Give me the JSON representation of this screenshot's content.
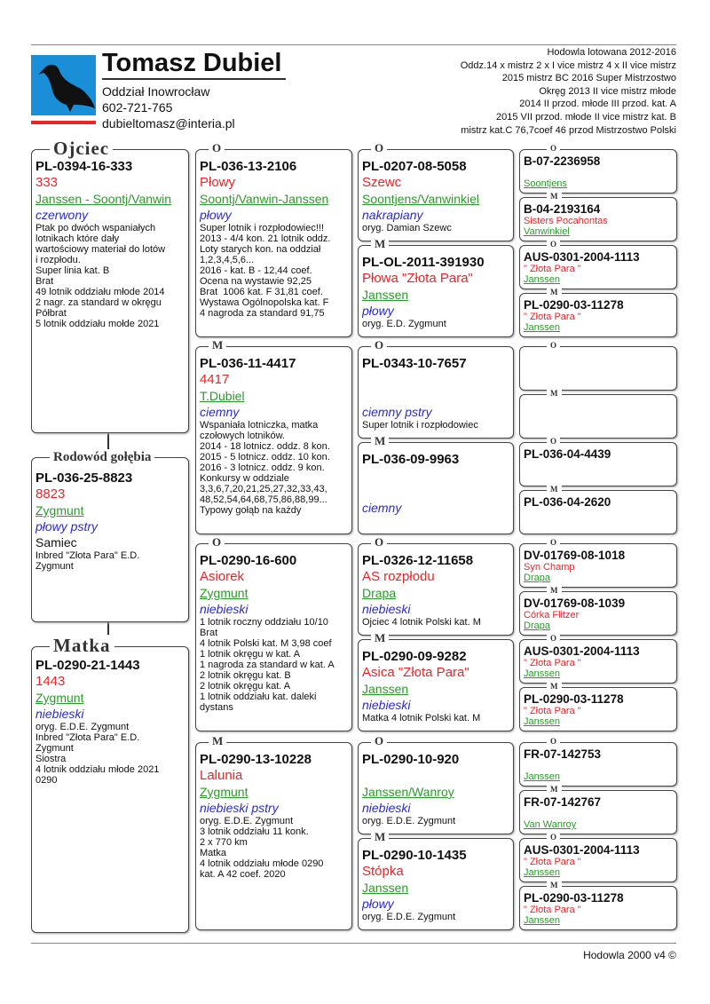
{
  "header": {
    "name": "Tomasz Dubiel",
    "lines": [
      "Oddział Inowrocław",
      "602-721-765",
      "dubieltomasz@interia.pl"
    ],
    "achievements": [
      "Hodowla lotowana 2012-2016",
      "Oddz.14 x mistrz 2 x I vice mistrz 4 x II vice mistrz",
      "2015 mistrz BC 2016 Super Mistrzostwo",
      "Okręg 2013 II vice mistrz młode",
      "2014 II przod. młode III przod. kat. A",
      "2015 VII przod. młode II vice mistrz kat. B",
      "mistrz kat.C 76,7coef 46 przod Mistrzostwo Polski"
    ]
  },
  "father": {
    "title": "Ojciec",
    "ring": "PL-0394-16-333",
    "name": "333",
    "strain": "Janssen - Soontj/Vanwin",
    "color": "czerwony",
    "notes": [
      "Ptak po dwóch wspaniałych",
      "lotnikach które dały",
      "wartościowy materiał do lotów",
      "i rozpłodu.",
      "Super linia kat. B",
      "Brat",
      "49 lotnik oddziału młode 2014",
      "2 nagr. za standard w okręgu",
      "Półbrat",
      "5 lotnik oddziału mołde 2021"
    ]
  },
  "subject": {
    "title": "Rodowód gołębia",
    "ring": "PL-036-25-8823",
    "name": "8823",
    "strain": "Zygmunt",
    "color": "płowy pstry",
    "sex": "Samiec",
    "notes": [
      "Inbred \"Złota Para\" E.D.",
      "Zygmunt"
    ]
  },
  "mother": {
    "title": "Matka",
    "ring": "PL-0290-21-1443",
    "name": "1443",
    "strain": "Zygmunt",
    "color": "niebieski",
    "notes": [
      "oryg. E.D.E. Zygmunt",
      "Inbred \"Złota Para\" E.D.",
      "Zygmunt",
      "Siostra",
      "4 lotnik oddziału młode 2021",
      "0290"
    ]
  },
  "gen2": [
    {
      "label": "O",
      "ring": "PL-036-13-2106",
      "name": "Płowy",
      "strain": "Soontj/Vanwin-Janssen",
      "color": "płowy",
      "notes": [
        "Super lotnik i rozpłodowiec!!!",
        "2013 - 4/4 kon. 21 lotnik oddz.",
        "Loty starych kon. na oddział",
        "1,2,3,4,5,6...",
        "2016 - kat. B - 12,44 coef.",
        "Ocena na wystawie 92,25",
        "Brat  1006 kat. F 31,81 coef.",
        "Wystawa Ogólnopolska kat. F",
        "4 nagroda za standard 91,75"
      ]
    },
    {
      "label": "M",
      "ring": "PL-036-11-4417",
      "name": "4417",
      "strain": "T.Dubiel",
      "color": "ciemny",
      "notes": [
        "Wspaniała lotniczka, matka",
        "czołowych lotników.",
        "2014 - 18 lotnicz. oddz. 8 kon.",
        "2015 - 5 lotnicz. oddz. 10 kon.",
        "2016 - 3 lotnicz. oddz. 9 kon.",
        "Konkursy w oddziale",
        "3,3,6,7,20,21,25,27,32,33,43,",
        "48,52,54,64,68,75,86,88,99...",
        "Typowy gołąb na każdy"
      ]
    },
    {
      "label": "O",
      "ring": "PL-0290-16-600",
      "name": "Asiorek",
      "strain": "Zygmunt",
      "color": "niebieski",
      "notes": [
        "1 lotnik roczny oddziału 10/10",
        "Brat",
        "4 lotnik Polski kat. M 3,98 coef",
        "1 lotnik okręgu w kat. A",
        "1 nagroda za standard w kat. A",
        "2 lotnik okręgu kat. B",
        "2 lotnik okręgu kat. A",
        "1 lotnik oddziału kat. daleki",
        "dystans"
      ]
    },
    {
      "label": "M",
      "ring": "PL-0290-13-10228",
      "name": "Lalunia",
      "strain": "Zygmunt",
      "color": "niebieski pstry",
      "notes": [
        "oryg. E.D.E. Zygmunt",
        "3 lotnik oddziału 11 konk.",
        "2 x 770 km",
        "Matka",
        "4 lotnik oddziału młode 0290",
        "kat. A 42 coef. 2020"
      ]
    }
  ],
  "gen3": [
    {
      "label": "O",
      "ring": "PL-0207-08-5058",
      "name": "Szewc",
      "strain": "Soontjens/Vanwinkiel",
      "color": "nakrapiany",
      "notes": [
        "oryg. Damian Szewc"
      ]
    },
    {
      "label": "M",
      "ring": "PL-OL-2011-391930",
      "name": "Płowa \"Złota Para\"",
      "strain": "Janssen",
      "color": "płowy",
      "notes": [
        "oryg. E.D. Zygmunt"
      ]
    },
    {
      "label": "O",
      "ring": "PL-0343-10-7657",
      "color": "ciemny pstry",
      "notes": [
        "Super lotnik i rozpłodowiec"
      ]
    },
    {
      "label": "M",
      "ring": "PL-036-09-9963",
      "color": "ciemny"
    },
    {
      "label": "O",
      "ring": "PL-0326-12-11658",
      "name": "AS rozpłodu",
      "strain": "Drapa",
      "color": "niebieski",
      "notes": [
        "Ojciec 4 lotnik Polski kat. M"
      ]
    },
    {
      "label": "M",
      "ring": "PL-0290-09-9282",
      "name": "Asica \"Złota Para\"",
      "strain": "Janssen",
      "color": "niebieski",
      "notes": [
        "Matka 4 lotnik Polski kat. M"
      ]
    },
    {
      "label": "O",
      "ring": "PL-0290-10-920",
      "strain": "Janssen/Wanroy",
      "color": "niebieski",
      "notes": [
        "oryg. E.D.E. Zygmunt"
      ]
    },
    {
      "label": "M",
      "ring": "PL-0290-10-1435",
      "name": "Stópka",
      "strain": "Janssen",
      "color": "płowy",
      "notes": [
        "oryg. E.D.E. Zygmunt"
      ]
    }
  ],
  "gen4": [
    {
      "label": "O",
      "ring": "B-07-2236958",
      "strain": "Soontjens"
    },
    {
      "label": "M",
      "ring": "B-04-2193164",
      "name": "Sisters Pocahontas",
      "strain": "Vanwinkiel"
    },
    {
      "label": "O",
      "ring": "AUS-0301-2004-1113",
      "name": "\" Złota Para \"",
      "strain": "Janssen"
    },
    {
      "label": "M",
      "ring": "PL-0290-03-11278",
      "name": "\" Złota Para \"",
      "strain": "Janssen"
    },
    {
      "label": "O"
    },
    {
      "label": "M"
    },
    {
      "label": "O",
      "ring": "PL-036-04-4439"
    },
    {
      "label": "M",
      "ring": "PL-036-04-2620"
    },
    {
      "label": "O",
      "ring": "DV-01769-08-1018",
      "name": "Syn Champ",
      "strain": "Drapa"
    },
    {
      "label": "M",
      "ring": "DV-01769-08-1039",
      "name": "Córka Flitzer",
      "strain": "Drapa"
    },
    {
      "label": "O",
      "ring": "AUS-0301-2004-1113",
      "name": "\" Złota Para \"",
      "strain": "Janssen"
    },
    {
      "label": "M",
      "ring": "PL-0290-03-11278",
      "name": "\" Złota Para \"",
      "strain": "Janssen"
    },
    {
      "label": "O",
      "ring": "FR-07-142753",
      "strain": "Janssen"
    },
    {
      "label": "M",
      "ring": "FR-07-142767",
      "strain": "Van Wanroy"
    },
    {
      "label": "O",
      "ring": "AUS-0301-2004-1113",
      "name": "\" Złota Para \"",
      "strain": "Janssen"
    },
    {
      "label": "M",
      "ring": "PL-0290-03-11278",
      "name": "\" Złota Para \"",
      "strain": "Janssen"
    }
  ],
  "footer": "Hodowla 2000 v4 ©"
}
